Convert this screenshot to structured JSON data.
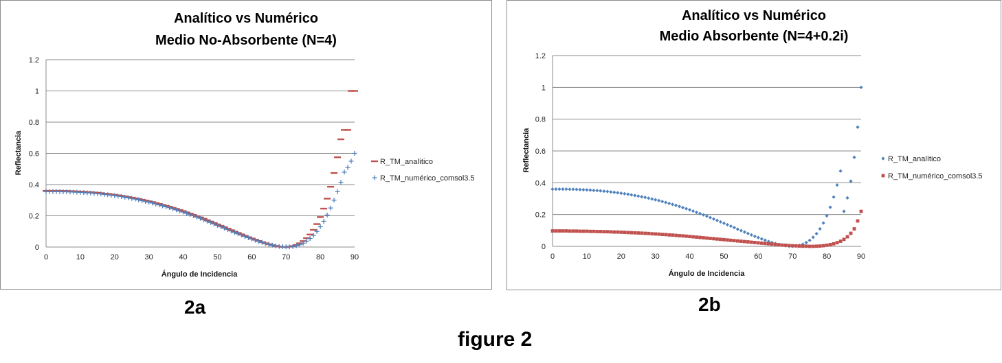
{
  "captions": {
    "a": "2a",
    "b": "2b",
    "figure": "figure 2"
  },
  "chart_data": [
    {
      "type": "scatter",
      "title": "Analítico vs Numérico",
      "subtitle": "Medio No-Absorbente (N=4)",
      "xlabel": "Ángulo de Incidencia",
      "ylabel": "Reflectancia",
      "xlim": [
        0,
        90
      ],
      "ylim": [
        0,
        1.2
      ],
      "xticks": [
        0,
        10,
        20,
        30,
        40,
        50,
        60,
        70,
        80,
        90
      ],
      "yticks": [
        0,
        0.2,
        0.4,
        0.6,
        0.8,
        1,
        1.2
      ],
      "ytick_labels": [
        "0",
        "0.2",
        "0.4",
        "0.6",
        "0.8",
        "1",
        "1.2"
      ],
      "grid": "horizontal",
      "legend_position": "right",
      "series": [
        {
          "name": "R_TM_analítico",
          "marker": "dash",
          "color": "#C0504D",
          "x": [
            0,
            1,
            2,
            3,
            4,
            5,
            6,
            7,
            8,
            9,
            10,
            11,
            12,
            13,
            14,
            15,
            16,
            17,
            18,
            19,
            20,
            21,
            22,
            23,
            24,
            25,
            26,
            27,
            28,
            29,
            30,
            31,
            32,
            33,
            34,
            35,
            36,
            37,
            38,
            39,
            40,
            41,
            42,
            43,
            44,
            45,
            46,
            47,
            48,
            49,
            50,
            51,
            52,
            53,
            54,
            55,
            56,
            57,
            58,
            59,
            60,
            61,
            62,
            63,
            64,
            65,
            66,
            67,
            68,
            69,
            70,
            71,
            72,
            73,
            74,
            75,
            76,
            77,
            78,
            79,
            80,
            81,
            82,
            83,
            84,
            85,
            86,
            87,
            88,
            89,
            90
          ],
          "y": [
            0.36,
            0.36,
            0.36,
            0.36,
            0.36,
            0.359,
            0.359,
            0.358,
            0.357,
            0.356,
            0.355,
            0.354,
            0.352,
            0.351,
            0.349,
            0.347,
            0.345,
            0.342,
            0.34,
            0.337,
            0.334,
            0.331,
            0.328,
            0.324,
            0.32,
            0.316,
            0.312,
            0.308,
            0.303,
            0.298,
            0.293,
            0.288,
            0.282,
            0.276,
            0.27,
            0.264,
            0.258,
            0.251,
            0.244,
            0.237,
            0.23,
            0.222,
            0.214,
            0.206,
            0.198,
            0.19,
            0.181,
            0.172,
            0.163,
            0.154,
            0.145,
            0.136,
            0.127,
            0.118,
            0.108,
            0.099,
            0.09,
            0.081,
            0.072,
            0.063,
            0.055,
            0.047,
            0.039,
            0.031,
            0.024,
            0.018,
            0.012,
            0.007,
            0.003,
            0.001,
            0.0,
            0.002,
            0.006,
            0.013,
            0.024,
            0.038,
            0.057,
            0.08,
            0.11,
            0.147,
            0.192,
            0.246,
            0.31,
            0.386,
            0.474,
            0.575,
            0.69,
            0.75,
            0.75,
            1.0,
            1.0
          ]
        },
        {
          "name": "R_TM_numérico_comsol3.5",
          "marker": "plus",
          "color": "#4F81BD",
          "x": [
            0,
            1,
            2,
            3,
            4,
            5,
            6,
            7,
            8,
            9,
            10,
            11,
            12,
            13,
            14,
            15,
            16,
            17,
            18,
            19,
            20,
            21,
            22,
            23,
            24,
            25,
            26,
            27,
            28,
            29,
            30,
            31,
            32,
            33,
            34,
            35,
            36,
            37,
            38,
            39,
            40,
            41,
            42,
            43,
            44,
            45,
            46,
            47,
            48,
            49,
            50,
            51,
            52,
            53,
            54,
            55,
            56,
            57,
            58,
            59,
            60,
            61,
            62,
            63,
            64,
            65,
            66,
            67,
            68,
            69,
            70,
            71,
            72,
            73,
            74,
            75,
            76,
            77,
            78,
            79,
            80,
            81,
            82,
            83,
            84,
            85,
            86,
            87,
            88,
            89,
            90
          ],
          "y": [
            0.355,
            0.355,
            0.355,
            0.355,
            0.355,
            0.354,
            0.354,
            0.353,
            0.352,
            0.351,
            0.35,
            0.349,
            0.347,
            0.346,
            0.344,
            0.342,
            0.34,
            0.337,
            0.335,
            0.332,
            0.329,
            0.326,
            0.323,
            0.319,
            0.315,
            0.311,
            0.307,
            0.302,
            0.297,
            0.292,
            0.287,
            0.282,
            0.276,
            0.27,
            0.264,
            0.258,
            0.252,
            0.245,
            0.238,
            0.231,
            0.224,
            0.216,
            0.208,
            0.2,
            0.192,
            0.184,
            0.175,
            0.166,
            0.157,
            0.148,
            0.139,
            0.13,
            0.121,
            0.112,
            0.103,
            0.094,
            0.085,
            0.077,
            0.068,
            0.06,
            0.052,
            0.044,
            0.037,
            0.03,
            0.023,
            0.017,
            0.012,
            0.007,
            0.004,
            0.002,
            0.001,
            0.001,
            0.003,
            0.008,
            0.015,
            0.025,
            0.038,
            0.055,
            0.075,
            0.1,
            0.13,
            0.165,
            0.205,
            0.25,
            0.3,
            0.355,
            0.415,
            0.48,
            0.51,
            0.55,
            0.6
          ]
        }
      ]
    },
    {
      "type": "scatter",
      "title": "Analítico vs Numérico",
      "subtitle": "Medio Absorbente (N=4+0.2i)",
      "xlabel": "Ángulo de Incidencia",
      "ylabel": "Reflectancia",
      "xlim": [
        0,
        90
      ],
      "ylim": [
        0,
        1.2
      ],
      "xticks": [
        0,
        10,
        20,
        30,
        40,
        50,
        60,
        70,
        80,
        90
      ],
      "yticks": [
        0,
        0.2,
        0.4,
        0.6,
        0.8,
        1,
        1.2
      ],
      "ytick_labels": [
        "0",
        "0.2",
        "0.4",
        "0.6",
        "0.8",
        "1",
        "1.2"
      ],
      "grid": "horizontal",
      "legend_position": "right",
      "series": [
        {
          "name": "R_TM_analítico",
          "marker": "diamond",
          "color": "#4F81BD",
          "x": [
            0,
            1,
            2,
            3,
            4,
            5,
            6,
            7,
            8,
            9,
            10,
            11,
            12,
            13,
            14,
            15,
            16,
            17,
            18,
            19,
            20,
            21,
            22,
            23,
            24,
            25,
            26,
            27,
            28,
            29,
            30,
            31,
            32,
            33,
            34,
            35,
            36,
            37,
            38,
            39,
            40,
            41,
            42,
            43,
            44,
            45,
            46,
            47,
            48,
            49,
            50,
            51,
            52,
            53,
            54,
            55,
            56,
            57,
            58,
            59,
            60,
            61,
            62,
            63,
            64,
            65,
            66,
            67,
            68,
            69,
            70,
            71,
            72,
            73,
            74,
            75,
            76,
            77,
            78,
            79,
            80,
            81,
            82,
            83,
            84,
            85,
            86,
            87,
            88,
            89,
            90
          ],
          "y": [
            0.36,
            0.36,
            0.36,
            0.36,
            0.36,
            0.359,
            0.359,
            0.358,
            0.357,
            0.356,
            0.355,
            0.354,
            0.352,
            0.351,
            0.349,
            0.347,
            0.345,
            0.342,
            0.34,
            0.337,
            0.334,
            0.331,
            0.328,
            0.324,
            0.32,
            0.316,
            0.312,
            0.308,
            0.303,
            0.298,
            0.293,
            0.288,
            0.282,
            0.276,
            0.27,
            0.264,
            0.258,
            0.251,
            0.244,
            0.237,
            0.23,
            0.222,
            0.214,
            0.206,
            0.198,
            0.19,
            0.181,
            0.172,
            0.163,
            0.154,
            0.145,
            0.136,
            0.127,
            0.118,
            0.108,
            0.099,
            0.09,
            0.081,
            0.072,
            0.063,
            0.055,
            0.047,
            0.039,
            0.031,
            0.024,
            0.018,
            0.012,
            0.007,
            0.003,
            0.001,
            0.0,
            0.002,
            0.006,
            0.013,
            0.024,
            0.038,
            0.057,
            0.08,
            0.11,
            0.147,
            0.192,
            0.246,
            0.31,
            0.386,
            0.474,
            0.22,
            0.305,
            0.41,
            0.56,
            0.75,
            1.0
          ]
        },
        {
          "name": "R_TM_numérico_comsol3.5",
          "marker": "square",
          "color": "#C0504D",
          "x": [
            0,
            1,
            2,
            3,
            4,
            5,
            6,
            7,
            8,
            9,
            10,
            11,
            12,
            13,
            14,
            15,
            16,
            17,
            18,
            19,
            20,
            21,
            22,
            23,
            24,
            25,
            26,
            27,
            28,
            29,
            30,
            31,
            32,
            33,
            34,
            35,
            36,
            37,
            38,
            39,
            40,
            41,
            42,
            43,
            44,
            45,
            46,
            47,
            48,
            49,
            50,
            51,
            52,
            53,
            54,
            55,
            56,
            57,
            58,
            59,
            60,
            61,
            62,
            63,
            64,
            65,
            66,
            67,
            68,
            69,
            70,
            71,
            72,
            73,
            74,
            75,
            76,
            77,
            78,
            79,
            80,
            81,
            82,
            83,
            84,
            85,
            86,
            87,
            88,
            89,
            90
          ],
          "y": [
            0.097,
            0.097,
            0.097,
            0.097,
            0.097,
            0.096,
            0.096,
            0.096,
            0.095,
            0.095,
            0.095,
            0.094,
            0.094,
            0.093,
            0.093,
            0.092,
            0.092,
            0.091,
            0.09,
            0.09,
            0.089,
            0.088,
            0.087,
            0.086,
            0.085,
            0.084,
            0.083,
            0.082,
            0.081,
            0.079,
            0.078,
            0.077,
            0.075,
            0.074,
            0.072,
            0.071,
            0.069,
            0.067,
            0.066,
            0.064,
            0.062,
            0.06,
            0.058,
            0.056,
            0.054,
            0.052,
            0.05,
            0.048,
            0.046,
            0.044,
            0.042,
            0.04,
            0.038,
            0.036,
            0.034,
            0.032,
            0.03,
            0.028,
            0.026,
            0.024,
            0.022,
            0.02,
            0.018,
            0.016,
            0.014,
            0.012,
            0.01,
            0.008,
            0.007,
            0.005,
            0.004,
            0.003,
            0.002,
            0.001,
            0.001,
            0.0,
            0.0,
            0.001,
            0.002,
            0.004,
            0.007,
            0.011,
            0.016,
            0.023,
            0.032,
            0.044,
            0.06,
            0.082,
            0.11,
            0.16,
            0.22
          ]
        }
      ]
    }
  ]
}
